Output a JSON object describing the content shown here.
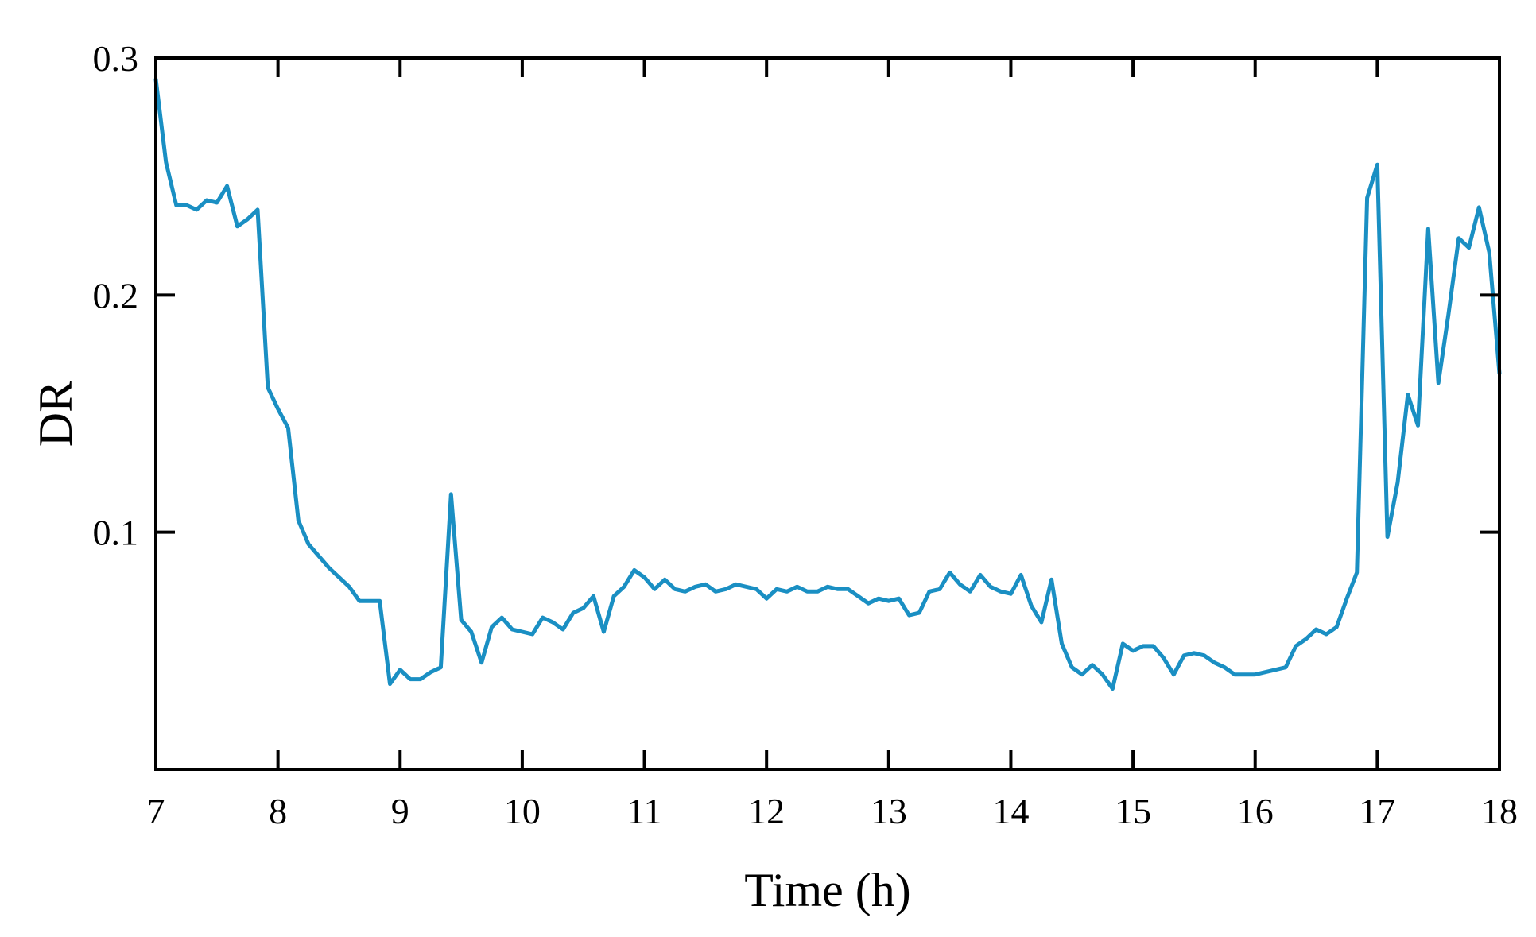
{
  "chart_data": {
    "type": "line",
    "xlabel": "Time (h)",
    "ylabel": "DR",
    "xlim": [
      7,
      18
    ],
    "ylim": [
      0,
      0.3
    ],
    "x_ticks": [
      7,
      8,
      9,
      10,
      11,
      12,
      13,
      14,
      15,
      16,
      17,
      18
    ],
    "x_tick_labels": [
      "7",
      "8",
      "9",
      "10",
      "11",
      "12",
      "13",
      "14",
      "15",
      "16",
      "17",
      "18"
    ],
    "y_ticks": [
      0.1,
      0.2,
      0.3
    ],
    "y_tick_labels": [
      "0.1",
      "0.2",
      "0.3"
    ],
    "grid": false,
    "line_color": "#1a8fc3",
    "series": [
      {
        "x": [
          7.0,
          7.083,
          7.167,
          7.25,
          7.333,
          7.417,
          7.5,
          7.583,
          7.667,
          7.75,
          7.833,
          7.917,
          8.0,
          8.083,
          8.167,
          8.25,
          8.333,
          8.417,
          8.5,
          8.583,
          8.667,
          8.75,
          8.833,
          8.917,
          9.0,
          9.083,
          9.167,
          9.25,
          9.333,
          9.417,
          9.5,
          9.583,
          9.667,
          9.75,
          9.833,
          9.917,
          10.0,
          10.083,
          10.167,
          10.25,
          10.333,
          10.417,
          10.5,
          10.583,
          10.667,
          10.75,
          10.833,
          10.917,
          11.0,
          11.083,
          11.167,
          11.25,
          11.333,
          11.417,
          11.5,
          11.583,
          11.667,
          11.75,
          11.833,
          11.917,
          12.0,
          12.083,
          12.167,
          12.25,
          12.333,
          12.417,
          12.5,
          12.583,
          12.667,
          12.75,
          12.833,
          12.917,
          13.0,
          13.083,
          13.167,
          13.25,
          13.333,
          13.417,
          13.5,
          13.583,
          13.667,
          13.75,
          13.833,
          13.917,
          14.0,
          14.083,
          14.167,
          14.25,
          14.333,
          14.417,
          14.5,
          14.583,
          14.667,
          14.75,
          14.833,
          14.917,
          15.0,
          15.083,
          15.167,
          15.25,
          15.333,
          15.417,
          15.5,
          15.583,
          15.667,
          15.75,
          15.833,
          15.917,
          16.0,
          16.083,
          16.167,
          16.25,
          16.333,
          16.417,
          16.5,
          16.583,
          16.667,
          16.75,
          16.833,
          16.917,
          17.0,
          17.083,
          17.167,
          17.25,
          17.333,
          17.417,
          17.5,
          17.583,
          17.667,
          17.75,
          17.833,
          17.917,
          18.0
        ],
        "values": [
          0.291,
          0.256,
          0.238,
          0.238,
          0.236,
          0.24,
          0.239,
          0.246,
          0.229,
          0.232,
          0.236,
          0.161,
          0.152,
          0.144,
          0.105,
          0.095,
          0.09,
          0.085,
          0.081,
          0.077,
          0.071,
          0.071,
          0.071,
          0.036,
          0.042,
          0.038,
          0.038,
          0.041,
          0.043,
          0.116,
          0.063,
          0.058,
          0.045,
          0.06,
          0.064,
          0.059,
          0.058,
          0.057,
          0.064,
          0.062,
          0.059,
          0.066,
          0.068,
          0.073,
          0.058,
          0.073,
          0.077,
          0.084,
          0.081,
          0.076,
          0.08,
          0.076,
          0.075,
          0.077,
          0.078,
          0.075,
          0.076,
          0.078,
          0.077,
          0.076,
          0.072,
          0.076,
          0.075,
          0.077,
          0.075,
          0.075,
          0.077,
          0.076,
          0.076,
          0.073,
          0.07,
          0.072,
          0.071,
          0.072,
          0.065,
          0.066,
          0.075,
          0.076,
          0.083,
          0.078,
          0.075,
          0.082,
          0.077,
          0.075,
          0.074,
          0.082,
          0.069,
          0.062,
          0.08,
          0.053,
          0.043,
          0.04,
          0.044,
          0.04,
          0.034,
          0.053,
          0.05,
          0.052,
          0.052,
          0.047,
          0.04,
          0.048,
          0.049,
          0.048,
          0.045,
          0.043,
          0.04,
          0.04,
          0.04,
          0.041,
          0.042,
          0.043,
          0.052,
          0.055,
          0.059,
          0.057,
          0.06,
          0.072,
          0.083,
          0.241,
          0.255,
          0.098,
          0.121,
          0.158,
          0.145,
          0.228,
          0.163,
          0.192,
          0.224,
          0.22,
          0.237,
          0.218,
          0.167
        ]
      }
    ]
  }
}
